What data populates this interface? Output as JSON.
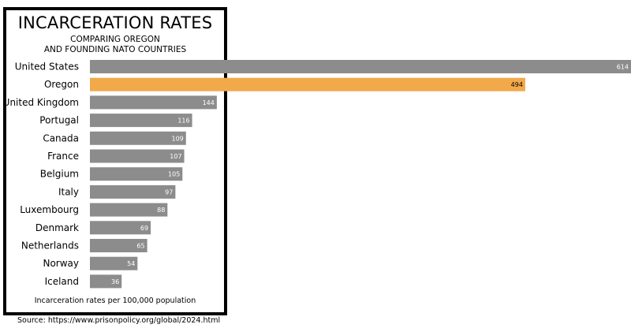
{
  "header": {
    "title": "INCARCERATION RATES",
    "subtitle_line1": "COMPARING OREGON",
    "subtitle_line2": "AND FOUNDING NATO COUNTRIES"
  },
  "footer": {
    "note": "Incarceration rates per 100,000 population",
    "source": "Source: https://www.prisonpolicy.org/global/2024.html"
  },
  "colors": {
    "default_bar": "#8c8c8c",
    "highlight_bar": "#f2a94a",
    "value_text_default": "#ffffff",
    "value_text_highlight": "#000000"
  },
  "chart_data": {
    "type": "bar",
    "orientation": "horizontal",
    "categories": [
      "United States",
      "Oregon",
      "United Kingdom",
      "Portugal",
      "Canada",
      "France",
      "Belgium",
      "Italy",
      "Luxembourg",
      "Denmark",
      "Netherlands",
      "Norway",
      "Iceland"
    ],
    "values": [
      614,
      494,
      144,
      116,
      109,
      107,
      105,
      97,
      88,
      69,
      65,
      54,
      36
    ],
    "highlight": "Oregon",
    "title": "INCARCERATION RATES",
    "subtitle": "COMPARING OREGON AND FOUNDING NATO COUNTRIES",
    "xlabel": "Incarceration rates per 100,000 population",
    "ylabel": "",
    "xlim": [
      0,
      614
    ],
    "grid": false,
    "legend": "none"
  }
}
